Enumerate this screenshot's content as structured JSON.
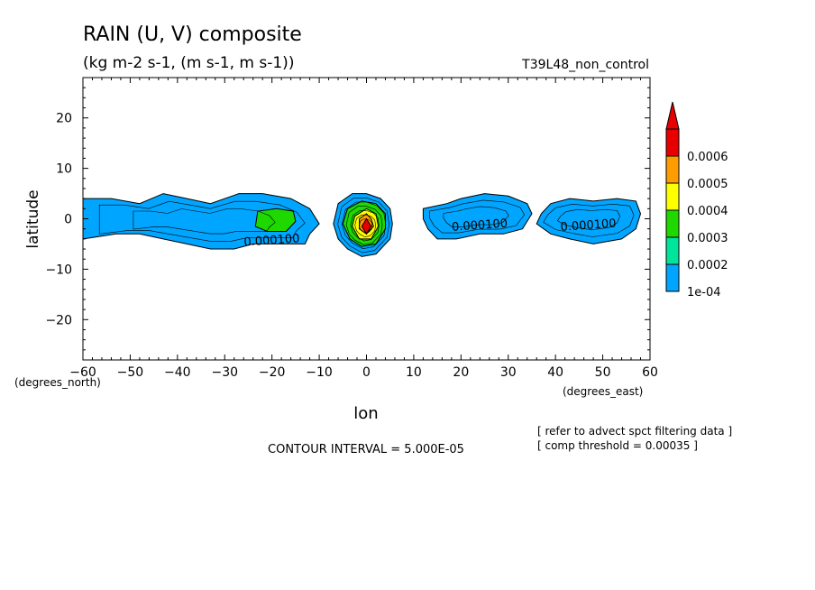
{
  "title": "RAIN (U, V) composite",
  "units": "(kg m-2 s-1, (m s-1, m s-1))",
  "experiment": "T39L48_non_control",
  "notes": [
    "[ refer to advect spct filtering data ]",
    "[ comp threshold = 0.00035 ]"
  ],
  "contour_interval_text": "CONTOUR INTERVAL = 5.000E-05",
  "chart_data": {
    "type": "contour",
    "title": "RAIN (U, V) composite",
    "subtitle": "(kg m-2 s-1, (m s-1, m s-1))",
    "xlabel": "lon",
    "ylabel": "latitude",
    "xunits": "(degrees_east)",
    "yunits": "(degrees_north)",
    "xlim": [
      -60,
      60
    ],
    "ylim": [
      -28,
      28
    ],
    "xticks": [
      -60,
      -50,
      -40,
      -30,
      -20,
      -10,
      0,
      10,
      20,
      30,
      40,
      50,
      60
    ],
    "yticks": [
      -20,
      -10,
      0,
      10,
      20
    ],
    "legend": {
      "placement": "right",
      "levels": [
        "1e-04",
        "0.0002",
        "0.0003",
        "0.0004",
        "0.0005",
        "0.0006"
      ],
      "colors": [
        "#00a5ff",
        "#00e59a",
        "#1ed800",
        "#ffff00",
        "#ff9d00",
        "#e80000"
      ]
    },
    "contour_labels": [
      {
        "text": "0.000100",
        "lon": -20,
        "lat": -5
      },
      {
        "text": "0.000100",
        "lon": 24,
        "lat": -2
      },
      {
        "text": "0.000100",
        "lon": 47,
        "lat": -2
      }
    ],
    "regions": [
      {
        "name": "west-band",
        "fill": "1e-04",
        "points": [
          [
            -60,
            4
          ],
          [
            -54,
            4
          ],
          [
            -48,
            3
          ],
          [
            -43,
            5
          ],
          [
            -38,
            4
          ],
          [
            -33,
            3
          ],
          [
            -27,
            5
          ],
          [
            -22,
            5
          ],
          [
            -16,
            4
          ],
          [
            -12,
            2
          ],
          [
            -10,
            -1
          ],
          [
            -12,
            -3
          ],
          [
            -13,
            -5
          ],
          [
            -18,
            -5
          ],
          [
            -24,
            -5
          ],
          [
            -28,
            -6
          ],
          [
            -33,
            -6
          ],
          [
            -38,
            -5
          ],
          [
            -43,
            -4
          ],
          [
            -48,
            -3
          ],
          [
            -53,
            -3
          ],
          [
            -60,
            -4
          ]
        ]
      },
      {
        "name": "west-core",
        "fill": "0.0003",
        "points": [
          [
            -23,
            1.5
          ],
          [
            -19,
            2
          ],
          [
            -15.5,
            1.5
          ],
          [
            -15,
            -0.5
          ],
          [
            -17,
            -2.5
          ],
          [
            -21,
            -2.5
          ],
          [
            -23.5,
            -1.5
          ]
        ]
      },
      {
        "name": "center-blob",
        "fill": "1e-04",
        "points": [
          [
            -6,
            3
          ],
          [
            -3,
            5
          ],
          [
            0,
            5
          ],
          [
            3,
            4
          ],
          [
            5,
            2
          ],
          [
            5.5,
            -1
          ],
          [
            5,
            -4
          ],
          [
            2,
            -7
          ],
          [
            -1,
            -7.5
          ],
          [
            -4,
            -6
          ],
          [
            -6,
            -4
          ],
          [
            -7,
            -1
          ]
        ]
      },
      {
        "name": "center-green",
        "fill": "0.0003",
        "points": [
          [
            -4,
            2
          ],
          [
            -1,
            3.5
          ],
          [
            2,
            3
          ],
          [
            4,
            1
          ],
          [
            4,
            -2
          ],
          [
            2,
            -5
          ],
          [
            -1,
            -5.5
          ],
          [
            -3.5,
            -4
          ],
          [
            -5,
            -1
          ]
        ]
      },
      {
        "name": "center-yellow",
        "fill": "0.0004",
        "points": [
          [
            -2.5,
            0.5
          ],
          [
            0,
            2
          ],
          [
            2,
            1
          ],
          [
            2.5,
            -1.5
          ],
          [
            1,
            -4
          ],
          [
            -1.5,
            -4
          ],
          [
            -3,
            -1.5
          ]
        ]
      },
      {
        "name": "center-orange",
        "fill": "0.0005",
        "points": [
          [
            -1.5,
            0
          ],
          [
            0,
            1
          ],
          [
            1,
            0
          ],
          [
            1.5,
            -1.5
          ],
          [
            0,
            -3
          ],
          [
            -1.5,
            -2
          ]
        ]
      },
      {
        "name": "center-peak",
        "fill": "0.0006",
        "points": [
          [
            -1,
            -1.5
          ],
          [
            0,
            0
          ],
          [
            1,
            -1.5
          ],
          [
            0,
            -3
          ]
        ]
      },
      {
        "name": "mid-band",
        "fill": "1e-04",
        "points": [
          [
            12,
            2
          ],
          [
            17,
            3
          ],
          [
            20,
            4
          ],
          [
            25,
            5
          ],
          [
            30,
            4.5
          ],
          [
            34,
            3
          ],
          [
            35,
            1
          ],
          [
            33,
            -2
          ],
          [
            29,
            -3
          ],
          [
            24,
            -3
          ],
          [
            19,
            -4
          ],
          [
            15,
            -4
          ],
          [
            13,
            -2
          ],
          [
            12,
            0
          ]
        ]
      },
      {
        "name": "east-band",
        "fill": "1e-04",
        "points": [
          [
            37,
            1
          ],
          [
            39,
            3
          ],
          [
            43,
            4
          ],
          [
            48,
            3.5
          ],
          [
            53,
            4
          ],
          [
            57,
            3.5
          ],
          [
            58,
            1
          ],
          [
            57,
            -2
          ],
          [
            54,
            -4
          ],
          [
            48,
            -5
          ],
          [
            43,
            -4
          ],
          [
            39,
            -3
          ],
          [
            36,
            -1
          ]
        ]
      }
    ]
  }
}
